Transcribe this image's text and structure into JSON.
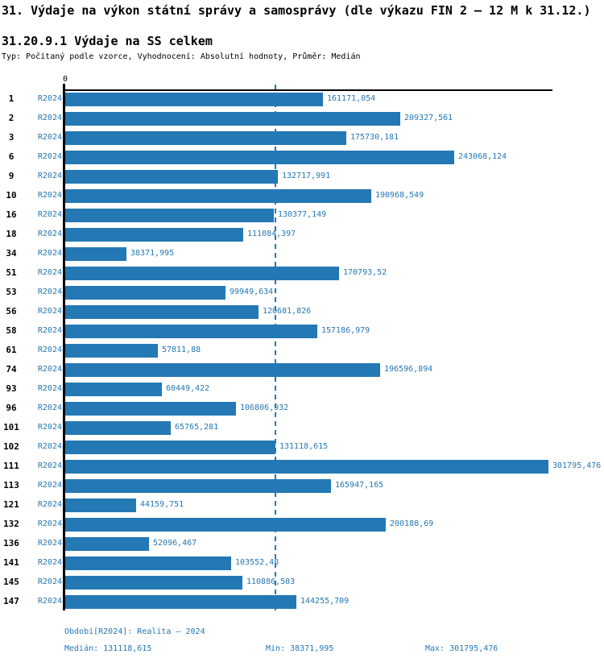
{
  "header": {
    "title": "31. Výdaje na výkon státní správy a samosprávy (dle výkazu FIN 2 – 12 M k 31.12.)",
    "subtitle": "31.20.9.1 Výdaje na SS celkem",
    "meta": "Typ: Počítaný podle vzorce, Vyhodnocení: Absolutní hodnoty, Průměr: Medián"
  },
  "axis": {
    "zero_label": "0"
  },
  "colors": {
    "accent": "#2478b4",
    "bar": "#2478b4",
    "axis": "#000000"
  },
  "chart_data": {
    "type": "bar",
    "orientation": "horizontal",
    "title": "31.20.9.1 Výdaje na SS celkem",
    "categories": [
      "1",
      "2",
      "3",
      "6",
      "9",
      "10",
      "16",
      "18",
      "34",
      "51",
      "53",
      "56",
      "58",
      "61",
      "74",
      "93",
      "96",
      "101",
      "102",
      "111",
      "113",
      "121",
      "132",
      "136",
      "141",
      "145",
      "147"
    ],
    "series": [
      {
        "name": "R2024",
        "values": [
          161171.054,
          209327.561,
          175730.181,
          243068.124,
          132717.991,
          190968.549,
          130377.149,
          111084.397,
          38371.995,
          170793.52,
          99949.634,
          120681.826,
          157186.979,
          57811.88,
          196596.894,
          60449.422,
          106806.932,
          65765.281,
          131118.615,
          301795.476,
          165947.165,
          44159.751,
          200188.69,
          52096.467,
          103552.48,
          110886.503,
          144255.709
        ]
      }
    ],
    "value_labels": [
      "161171,054",
      "209327,561",
      "175730,181",
      "243068,124",
      "132717,991",
      "190968,549",
      "130377,149",
      "111084,397",
      "38371,995",
      "170793,52",
      "99949,634",
      "120681,826",
      "157186,979",
      "57811,88",
      "196596,894",
      "60449,422",
      "106806,932",
      "65765,281",
      "131118,615",
      "301795,476",
      "165947,165",
      "44159,751",
      "200188,69",
      "52096,467",
      "103552,48",
      "110886,503",
      "144255,709"
    ],
    "xlim": [
      0,
      301795.476
    ],
    "median": 131118.615,
    "grid": false,
    "legend": false
  },
  "footer": {
    "period": "Období[R2024]: Realita – 2024",
    "median": "Medián: 131118,615",
    "min": "Min: 38371,995",
    "max": "Max: 301795,476"
  }
}
